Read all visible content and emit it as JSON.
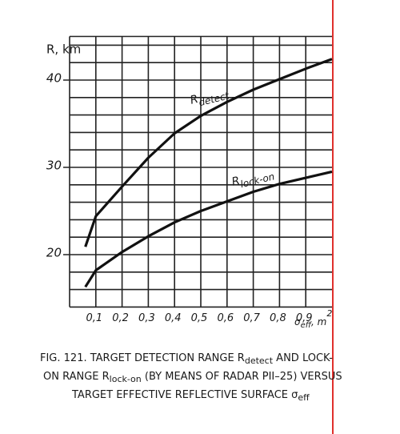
{
  "chart_data": {
    "type": "line",
    "ylabel": "R, km",
    "xlabel": [
      "σ",
      "eff",
      ", m",
      "2"
    ],
    "caption": [
      [
        "FIG. 121. TARGET DETECTION RANGE R",
        "detect",
        " AND LOCK-"
      ],
      [
        "ON RANGE R",
        "lock-on",
        " (BY MEANS OF RADAR PII–25) VERSUS"
      ],
      [
        "TARGET EFFECTIVE  REFLECTIVE SURFACE σ",
        "eff"
      ]
    ],
    "xlim": [
      0,
      1
    ],
    "ylim": [
      14,
      45
    ],
    "xticks": [
      {
        "value": 0.1,
        "label": "0,1"
      },
      {
        "value": 0.2,
        "label": "0,2"
      },
      {
        "value": 0.3,
        "label": "0,3"
      },
      {
        "value": 0.4,
        "label": "0,4"
      },
      {
        "value": 0.5,
        "label": "0,5"
      },
      {
        "value": 0.6,
        "label": "0,6"
      },
      {
        "value": 0.7,
        "label": "0,7"
      },
      {
        "value": 0.8,
        "label": "0,8"
      },
      {
        "value": 0.9,
        "label": "0,9"
      }
    ],
    "yticks": [
      20,
      30,
      40
    ],
    "grid": true,
    "series": [
      {
        "name": "R",
        "name_sub": "detect",
        "color": "#111111",
        "x": [
          0.06,
          0.1,
          0.2,
          0.3,
          0.4,
          0.5,
          0.6,
          0.7,
          0.8,
          0.9,
          1.0
        ],
        "values": [
          20.9,
          24.4,
          27.8,
          31.1,
          33.9,
          35.9,
          37.5,
          38.9,
          40.1,
          41.3,
          42.4
        ]
      },
      {
        "name": "R",
        "name_sub": "lock-on",
        "color": "#111111",
        "x": [
          0.06,
          0.1,
          0.2,
          0.3,
          0.4,
          0.5,
          0.6,
          0.7,
          0.8,
          0.9,
          1.0
        ],
        "values": [
          16.3,
          18.2,
          20.3,
          22.1,
          23.7,
          25.0,
          26.1,
          27.2,
          28.1,
          28.8,
          29.5
        ]
      }
    ]
  }
}
